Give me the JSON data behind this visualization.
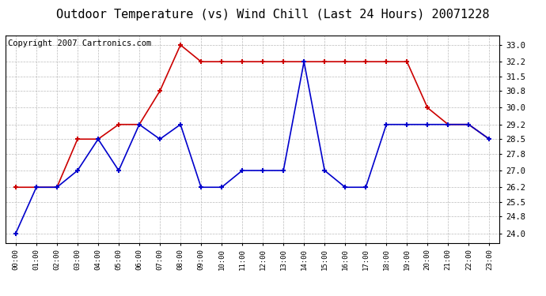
{
  "title": "Outdoor Temperature (vs) Wind Chill (Last 24 Hours) 20071228",
  "copyright_text": "Copyright 2007 Cartronics.com",
  "x_labels": [
    "00:00",
    "01:00",
    "02:00",
    "03:00",
    "04:00",
    "05:00",
    "06:00",
    "07:00",
    "08:00",
    "09:00",
    "10:00",
    "11:00",
    "12:00",
    "13:00",
    "14:00",
    "15:00",
    "16:00",
    "17:00",
    "18:00",
    "19:00",
    "20:00",
    "21:00",
    "22:00",
    "23:00"
  ],
  "red_data": [
    26.2,
    26.2,
    26.2,
    28.5,
    28.5,
    29.2,
    29.2,
    30.8,
    33.0,
    32.2,
    32.2,
    32.2,
    32.2,
    32.2,
    32.2,
    32.2,
    32.2,
    32.2,
    32.2,
    32.2,
    30.0,
    29.2,
    29.2,
    28.5
  ],
  "blue_data": [
    24.0,
    26.2,
    26.2,
    27.0,
    28.5,
    27.0,
    29.2,
    28.5,
    29.2,
    26.2,
    26.2,
    27.0,
    27.0,
    27.0,
    32.2,
    27.0,
    26.2,
    26.2,
    29.2,
    29.2,
    29.2,
    29.2,
    29.2,
    28.5
  ],
  "y_ticks": [
    24.0,
    24.8,
    25.5,
    26.2,
    27.0,
    27.8,
    28.5,
    29.2,
    30.0,
    30.8,
    31.5,
    32.2,
    33.0
  ],
  "ylim": [
    23.55,
    33.45
  ],
  "red_color": "#cc0000",
  "blue_color": "#0000cc",
  "background_color": "#ffffff",
  "grid_color": "#aaaaaa",
  "title_fontsize": 11,
  "copyright_fontsize": 7.5
}
